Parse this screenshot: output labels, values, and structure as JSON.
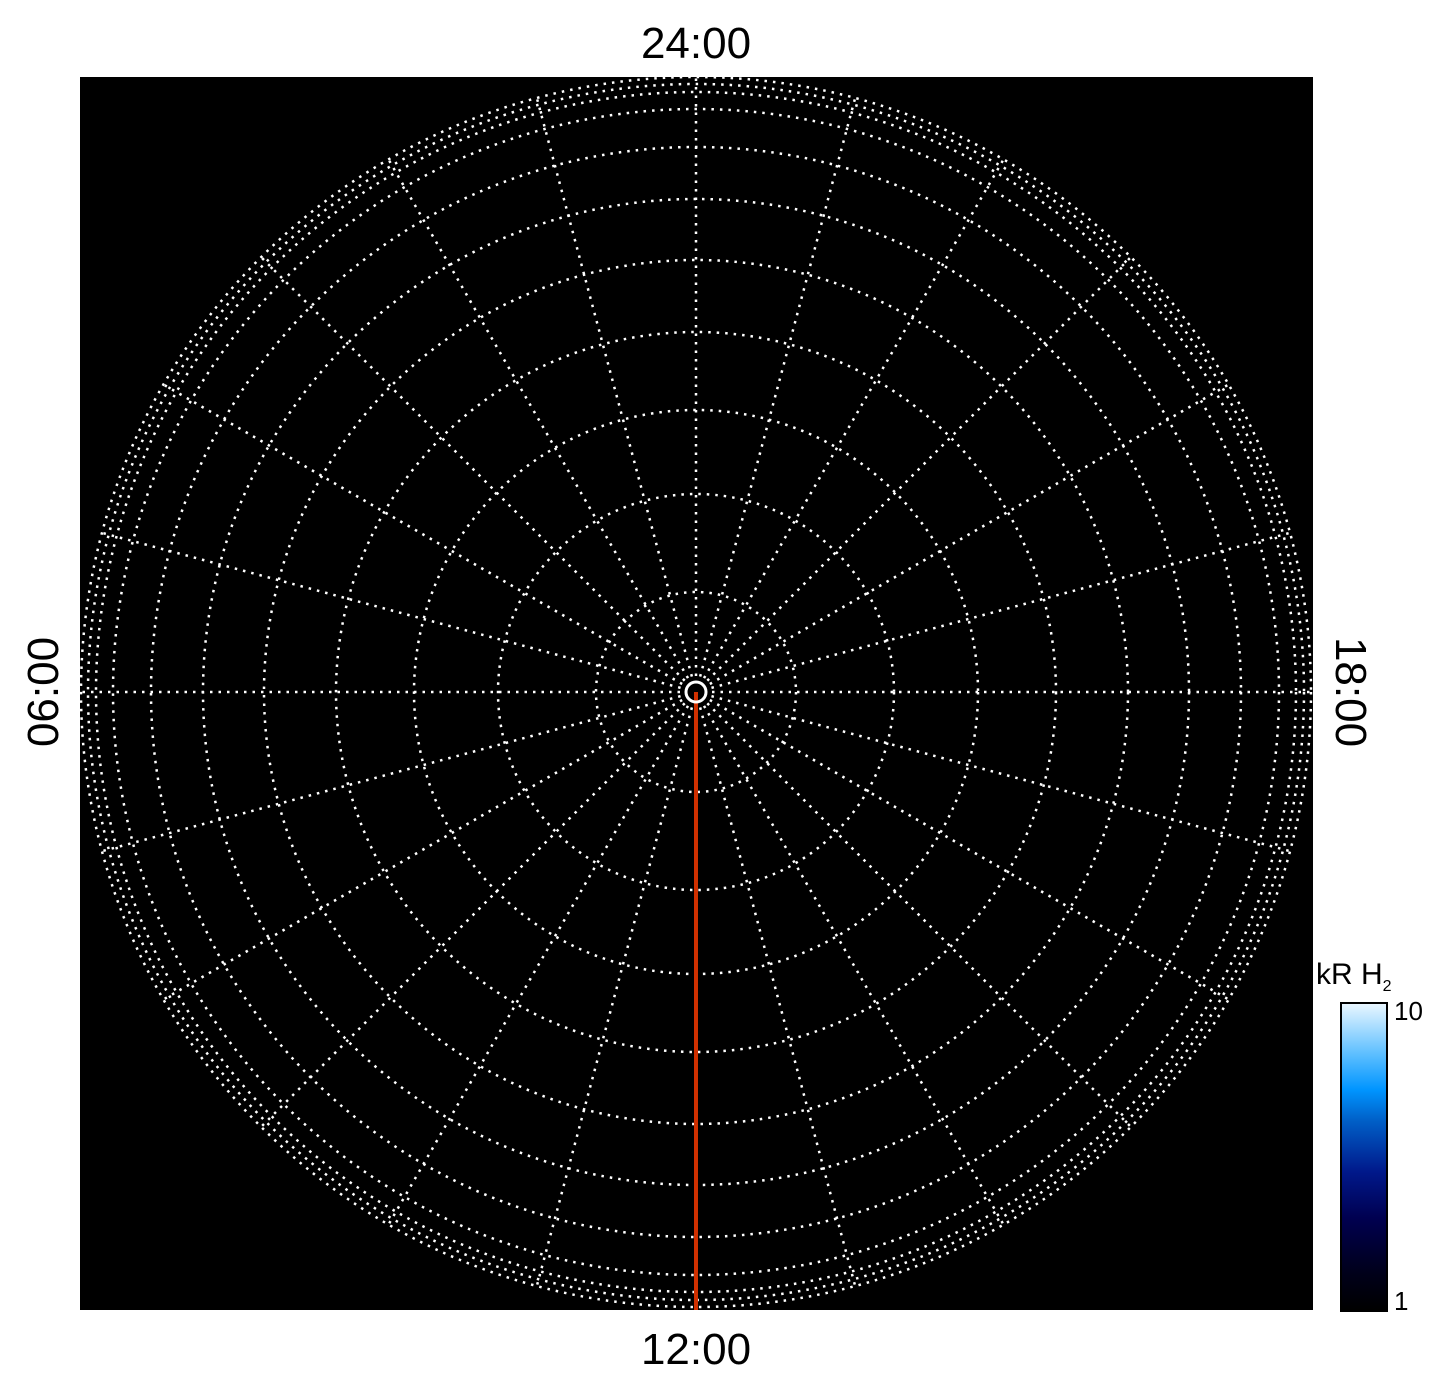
{
  "chart_data": {
    "type": "polar",
    "projection": "polar (local time around pole)",
    "background": "#000000",
    "grid": true,
    "grid_color": "#ffffff",
    "local_time_labels": {
      "top": "24:00",
      "bottom": "12:00",
      "left": "06:00",
      "right": "18:00"
    },
    "meridian_spacing_hours": 1,
    "highlight_line": {
      "local_time": "12:00",
      "color": "#d03000"
    },
    "colorbar": {
      "title": "kR H",
      "title_subscript": "2",
      "min_label": "1",
      "max_label": "10",
      "range": [
        1,
        10
      ],
      "scale": "log",
      "colors": [
        "#000000",
        "#000050",
        "#0060c8",
        "#0095ff",
        "#e8f6ff"
      ]
    }
  }
}
